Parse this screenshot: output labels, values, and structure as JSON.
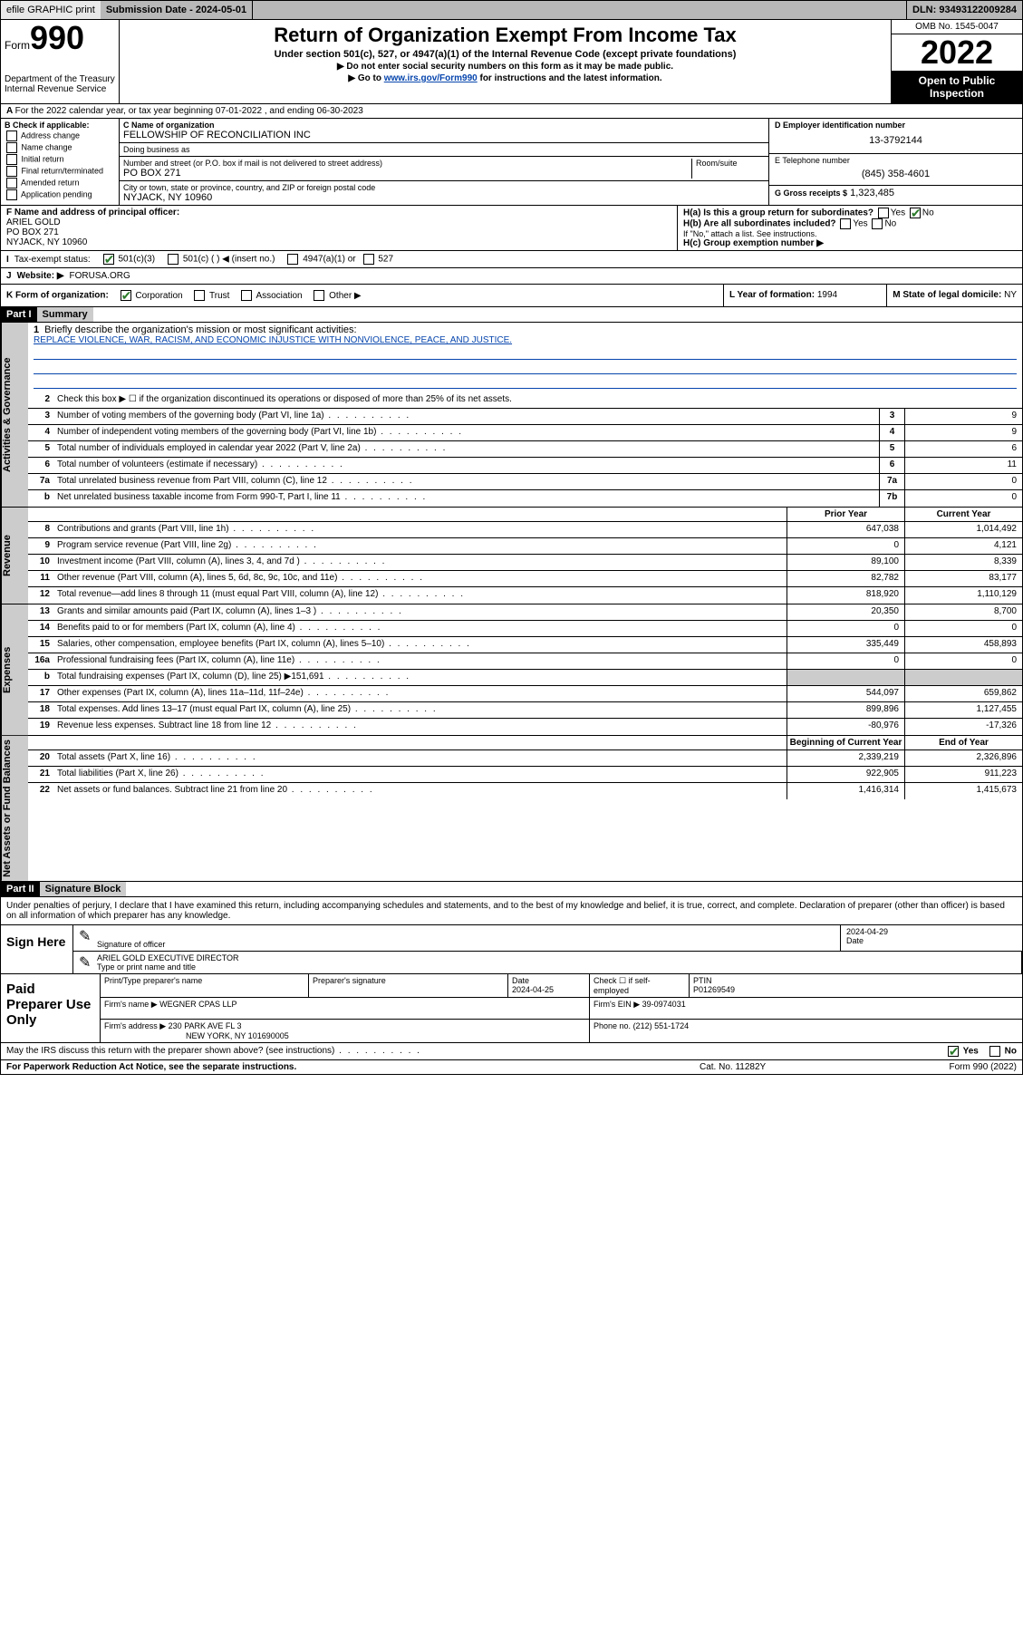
{
  "topbar": {
    "efile": "efile GRAPHIC print",
    "submission_label": "Submission Date - 2024-05-01",
    "dln": "DLN: 93493122009284"
  },
  "header": {
    "form_word": "Form",
    "form_num": "990",
    "dept": "Department of the Treasury\nInternal Revenue Service",
    "title": "Return of Organization Exempt From Income Tax",
    "sub1": "Under section 501(c), 527, or 4947(a)(1) of the Internal Revenue Code (except private foundations)",
    "sub2": "Do not enter social security numbers on this form as it may be made public.",
    "sub3_pre": "Go to ",
    "sub3_link": "www.irs.gov/Form990",
    "sub3_post": " for instructions and the latest information.",
    "omb": "OMB No. 1545-0047",
    "year": "2022",
    "open": "Open to Public Inspection"
  },
  "A": {
    "text": "For the 2022 calendar year, or tax year beginning 07-01-2022   , and ending 06-30-2023"
  },
  "B": {
    "label": "B Check if applicable:",
    "opts": [
      "Address change",
      "Name change",
      "Initial return",
      "Final return/terminated",
      "Amended return",
      "Application pending"
    ]
  },
  "C": {
    "name_label": "C Name of organization",
    "name": "FELLOWSHIP OF RECONCILIATION INC",
    "dba_label": "Doing business as",
    "dba": "",
    "street_label": "Number and street (or P.O. box if mail is not delivered to street address)",
    "room_label": "Room/suite",
    "street": "PO BOX 271",
    "city_label": "City or town, state or province, country, and ZIP or foreign postal code",
    "city": "NYJACK, NY  10960"
  },
  "D": {
    "label": "D Employer identification number",
    "ein": "13-3792144"
  },
  "E": {
    "label": "E Telephone number",
    "phone": "(845) 358-4601"
  },
  "G": {
    "label": "G Gross receipts $",
    "val": "1,323,485"
  },
  "F": {
    "label": "F  Name and address of principal officer:",
    "name": "ARIEL GOLD",
    "addr1": "PO BOX 271",
    "addr2": "NYJACK, NY  10960"
  },
  "H": {
    "a": "H(a)  Is this a group return for subordinates?",
    "b": "H(b)  Are all subordinates included?",
    "b_note": "If \"No,\" attach a list. See instructions.",
    "c": "H(c)  Group exemption number ▶",
    "yes": "Yes",
    "no": "No"
  },
  "I": {
    "label": "Tax-exempt status:",
    "opts": [
      "501(c)(3)",
      "501(c) (  ) ◀ (insert no.)",
      "4947(a)(1) or",
      "527"
    ]
  },
  "J": {
    "label": "Website: ▶",
    "val": "FORUSA.ORG"
  },
  "K": {
    "label": "K Form of organization:",
    "opts": [
      "Corporation",
      "Trust",
      "Association",
      "Other ▶"
    ]
  },
  "L": {
    "label": "L Year of formation:",
    "val": "1994"
  },
  "M": {
    "label": "M State of legal domicile:",
    "val": "NY"
  },
  "part1": {
    "bar": "Part I",
    "title": "Summary"
  },
  "summary": {
    "l1_label": "Briefly describe the organization's mission or most significant activities:",
    "l1_text": "REPLACE VIOLENCE, WAR, RACISM, AND ECONOMIC INJUSTICE WITH NONVIOLENCE, PEACE, AND JUSTICE.",
    "l2": "Check this box ▶ ☐  if the organization discontinued its operations or disposed of more than 25% of its net assets.",
    "rows_gov": [
      {
        "n": "3",
        "d": "Number of voting members of the governing body (Part VI, line 1a)",
        "box": "3",
        "v": "9"
      },
      {
        "n": "4",
        "d": "Number of independent voting members of the governing body (Part VI, line 1b)",
        "box": "4",
        "v": "9"
      },
      {
        "n": "5",
        "d": "Total number of individuals employed in calendar year 2022 (Part V, line 2a)",
        "box": "5",
        "v": "6"
      },
      {
        "n": "6",
        "d": "Total number of volunteers (estimate if necessary)",
        "box": "6",
        "v": "11"
      },
      {
        "n": "7a",
        "d": "Total unrelated business revenue from Part VIII, column (C), line 12",
        "box": "7a",
        "v": "0"
      },
      {
        "n": "b",
        "d": "Net unrelated business taxable income from Form 990-T, Part I, line 11",
        "box": "7b",
        "v": "0"
      }
    ],
    "hdr_prior": "Prior Year",
    "hdr_curr": "Current Year",
    "rows_rev": [
      {
        "n": "8",
        "d": "Contributions and grants (Part VIII, line 1h)",
        "p": "647,038",
        "c": "1,014,492"
      },
      {
        "n": "9",
        "d": "Program service revenue (Part VIII, line 2g)",
        "p": "0",
        "c": "4,121"
      },
      {
        "n": "10",
        "d": "Investment income (Part VIII, column (A), lines 3, 4, and 7d )",
        "p": "89,100",
        "c": "8,339"
      },
      {
        "n": "11",
        "d": "Other revenue (Part VIII, column (A), lines 5, 6d, 8c, 9c, 10c, and 11e)",
        "p": "82,782",
        "c": "83,177"
      },
      {
        "n": "12",
        "d": "Total revenue—add lines 8 through 11 (must equal Part VIII, column (A), line 12)",
        "p": "818,920",
        "c": "1,110,129"
      }
    ],
    "rows_exp": [
      {
        "n": "13",
        "d": "Grants and similar amounts paid (Part IX, column (A), lines 1–3 )",
        "p": "20,350",
        "c": "8,700"
      },
      {
        "n": "14",
        "d": "Benefits paid to or for members (Part IX, column (A), line 4)",
        "p": "0",
        "c": "0"
      },
      {
        "n": "15",
        "d": "Salaries, other compensation, employee benefits (Part IX, column (A), lines 5–10)",
        "p": "335,449",
        "c": "458,893"
      },
      {
        "n": "16a",
        "d": "Professional fundraising fees (Part IX, column (A), line 11e)",
        "p": "0",
        "c": "0"
      },
      {
        "n": "b",
        "d": "Total fundraising expenses (Part IX, column (D), line 25) ▶151,691",
        "p": "",
        "c": "",
        "shade": true
      },
      {
        "n": "17",
        "d": "Other expenses (Part IX, column (A), lines 11a–11d, 11f–24e)",
        "p": "544,097",
        "c": "659,862"
      },
      {
        "n": "18",
        "d": "Total expenses. Add lines 13–17 (must equal Part IX, column (A), line 25)",
        "p": "899,896",
        "c": "1,127,455"
      },
      {
        "n": "19",
        "d": "Revenue less expenses. Subtract line 18 from line 12",
        "p": "-80,976",
        "c": "-17,326"
      }
    ],
    "hdr_beg": "Beginning of Current Year",
    "hdr_end": "End of Year",
    "rows_net": [
      {
        "n": "20",
        "d": "Total assets (Part X, line 16)",
        "p": "2,339,219",
        "c": "2,326,896"
      },
      {
        "n": "21",
        "d": "Total liabilities (Part X, line 26)",
        "p": "922,905",
        "c": "911,223"
      },
      {
        "n": "22",
        "d": "Net assets or fund balances. Subtract line 21 from line 20",
        "p": "1,416,314",
        "c": "1,415,673"
      }
    ]
  },
  "tabs": {
    "gov": "Activities & Governance",
    "rev": "Revenue",
    "exp": "Expenses",
    "net": "Net Assets or Fund Balances"
  },
  "part2": {
    "bar": "Part II",
    "title": "Signature Block"
  },
  "sig": {
    "decl": "Under penalties of perjury, I declare that I have examined this return, including accompanying schedules and statements, and to the best of my knowledge and belief, it is true, correct, and complete. Declaration of preparer (other than officer) is based on all information of which preparer has any knowledge.",
    "sign_here": "Sign Here",
    "sig_officer": "Signature of officer",
    "date": "Date",
    "date_val": "2024-04-29",
    "name_title": "ARIEL GOLD  EXECUTIVE DIRECTOR",
    "name_label": "Type or print name and title"
  },
  "prep": {
    "label": "Paid Preparer Use Only",
    "h1": "Print/Type preparer's name",
    "h2": "Preparer's signature",
    "h3": "Date",
    "h3v": "2024-04-25",
    "h4": "Check ☐ if self-employed",
    "h5": "PTIN",
    "h5v": "P01269549",
    "firm_name_l": "Firm's name     ▶",
    "firm_name": "WEGNER CPAS LLP",
    "firm_ein_l": "Firm's EIN ▶",
    "firm_ein": "39-0974031",
    "firm_addr_l": "Firm's address ▶",
    "firm_addr1": "230 PARK AVE FL 3",
    "firm_addr2": "NEW YORK, NY  101690005",
    "phone_l": "Phone no.",
    "phone": "(212) 551-1724"
  },
  "discuss": {
    "q": "May the IRS discuss this return with the preparer shown above? (see instructions)",
    "yes": "Yes",
    "no": "No"
  },
  "footer": {
    "left": "For Paperwork Reduction Act Notice, see the separate instructions.",
    "mid": "Cat. No. 11282Y",
    "right": "Form 990 (2022)"
  }
}
